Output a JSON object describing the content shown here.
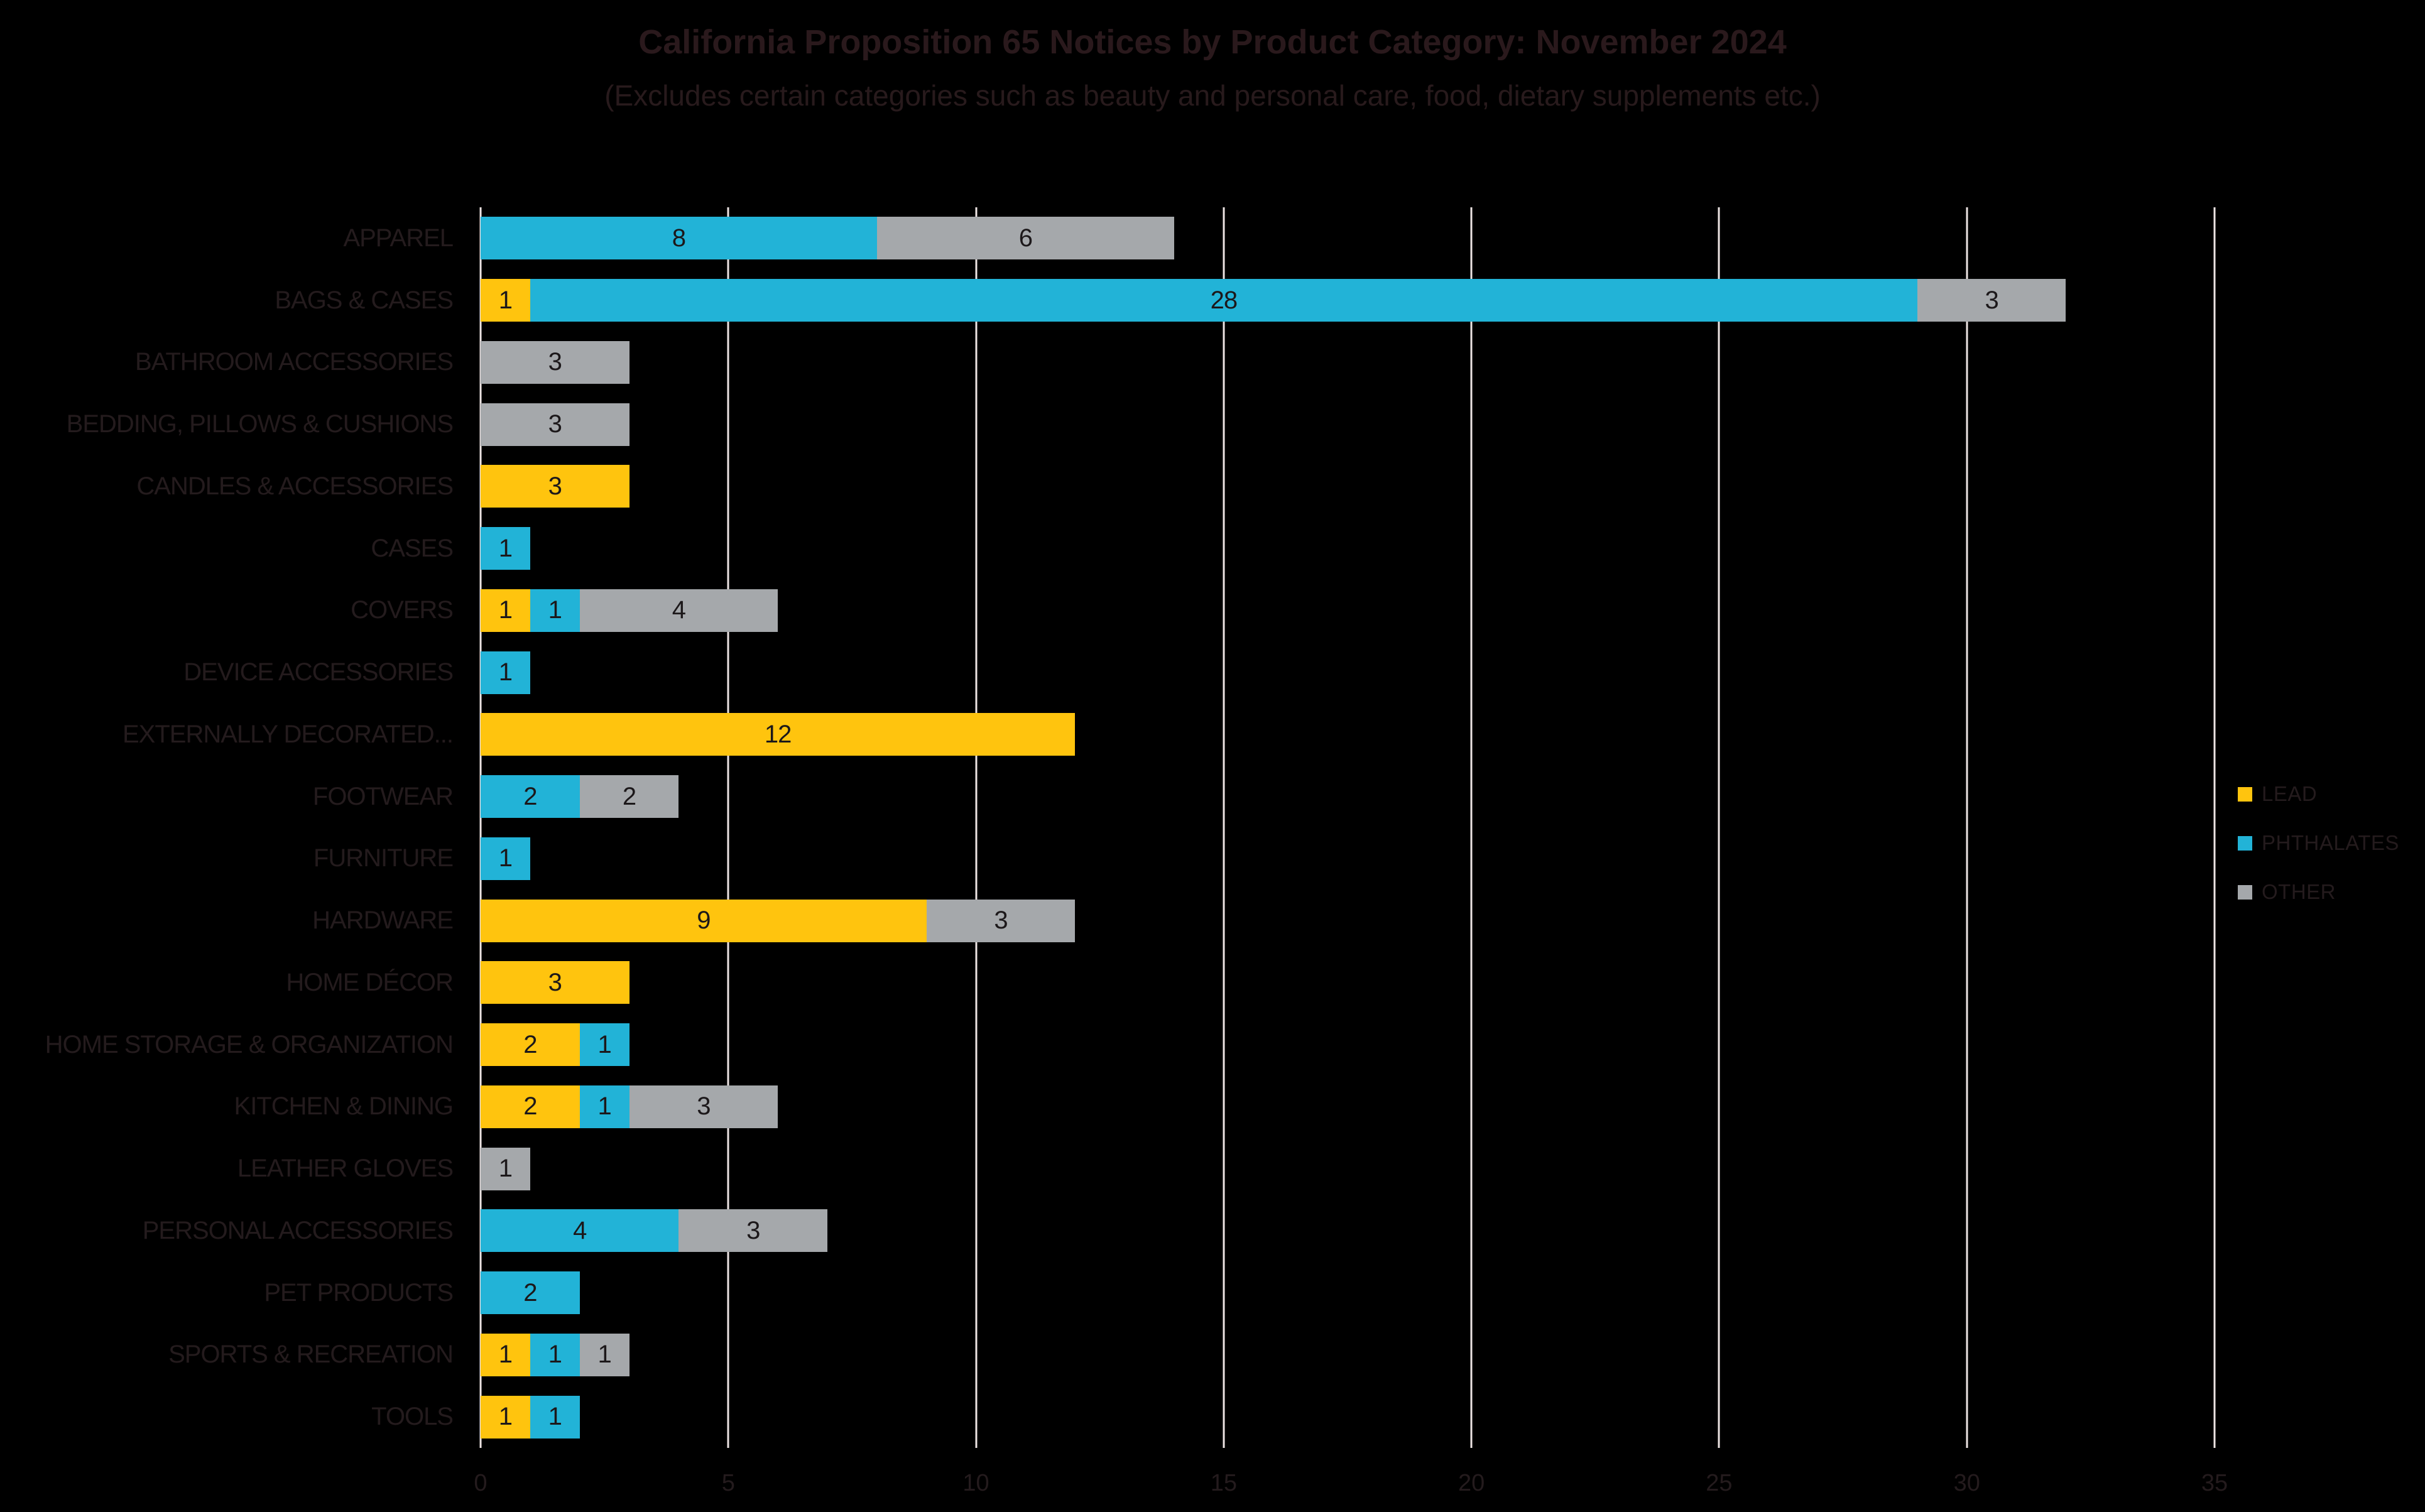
{
  "page": {
    "background_color": "#000000",
    "text_color_dark": "#241B1D",
    "gridline_color": "#EDE4E3"
  },
  "chart_data": {
    "type": "bar",
    "orientation": "horizontal",
    "stacked": true,
    "title": "California Proposition 65 Notices by Product Category: November 2024",
    "subtitle": "(Excludes certain categories such as beauty and personal care, food, dietary supplements etc.)",
    "categories": [
      "APPAREL",
      "BAGS & CASES",
      "BATHROOM ACCESSORIES",
      "BEDDING, PILLOWS & CUSHIONS",
      "CANDLES & ACCESSORIES",
      "CASES",
      "COVERS",
      "DEVICE ACCESSORIES",
      "EXTERNALLY DECORATED...",
      "FOOTWEAR",
      "FURNITURE",
      "HARDWARE",
      "HOME DÉCOR",
      "HOME STORAGE & ORGANIZATION",
      "KITCHEN & DINING",
      "LEATHER GLOVES",
      "PERSONAL ACCESSORIES",
      "PET PRODUCTS",
      "SPORTS & RECREATION",
      "TOOLS"
    ],
    "series": [
      {
        "name": "LEAD",
        "color": "#FFC40E",
        "values": [
          0,
          1,
          0,
          0,
          3,
          0,
          1,
          0,
          12,
          0,
          0,
          9,
          3,
          2,
          2,
          0,
          0,
          0,
          1,
          1
        ]
      },
      {
        "name": "PHTHALATES",
        "color": "#22B3D7",
        "values": [
          8,
          28,
          0,
          0,
          0,
          1,
          1,
          1,
          0,
          2,
          1,
          0,
          0,
          1,
          1,
          0,
          4,
          2,
          1,
          1
        ]
      },
      {
        "name": "OTHER",
        "color": "#A5A8AB",
        "values": [
          6,
          3,
          3,
          3,
          0,
          0,
          4,
          0,
          0,
          2,
          0,
          3,
          0,
          0,
          3,
          1,
          3,
          0,
          1,
          0
        ]
      }
    ],
    "xlim": [
      0,
      35
    ],
    "xticks": [
      0,
      5,
      10,
      15,
      20,
      25,
      30,
      35
    ],
    "grid": "vertical",
    "legend_position": "right",
    "show_value_labels": true
  }
}
